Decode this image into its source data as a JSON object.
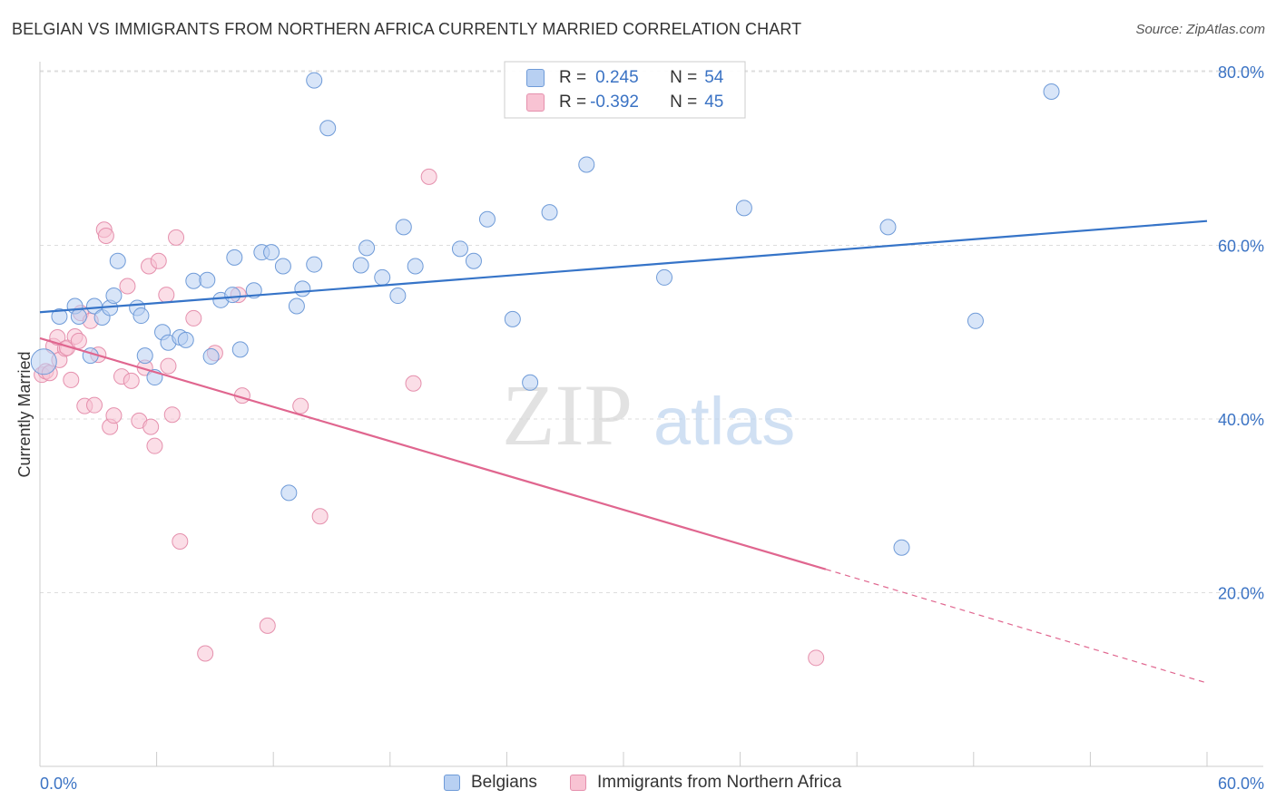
{
  "title": "BELGIAN VS IMMIGRANTS FROM NORTHERN AFRICA CURRENTLY MARRIED CORRELATION CHART",
  "source": "Source: ZipAtlas.com",
  "watermark": {
    "zip": "ZIP",
    "atlas": "atlas"
  },
  "colors": {
    "belgian_fill": "#b8d0f2",
    "belgian_stroke": "#6f9bd8",
    "belgian_line": "#3674c8",
    "immigrant_fill": "#f8c3d3",
    "immigrant_stroke": "#e590ad",
    "immigrant_line": "#e0668f",
    "axis_label": "#3b73c4",
    "grid": "#dddddd"
  },
  "correlation_box": {
    "rows": [
      {
        "r_label": "R = ",
        "r_value": "0.245",
        "n_label": "N = ",
        "n_value": "54"
      },
      {
        "r_label": "R = ",
        "r_value": "-0.392",
        "n_label": "N = ",
        "n_value": "45"
      }
    ]
  },
  "legend": {
    "items": [
      "Belgians",
      "Immigrants from Northern Africa"
    ]
  },
  "chart_data": {
    "type": "scatter",
    "title": "BELGIAN VS IMMIGRANTS FROM NORTHERN AFRICA CURRENTLY MARRIED CORRELATION CHART",
    "xlabel": "",
    "ylabel": "Currently Married",
    "xlim": [
      0,
      60
    ],
    "ylim": [
      0,
      83
    ],
    "x_tick_labels": [
      "0.0%",
      "60.0%"
    ],
    "y_ticks": [
      20,
      40,
      60,
      80
    ],
    "y_tick_labels": [
      "20.0%",
      "40.0%",
      "60.0%",
      "80.0%"
    ],
    "grid": "horizontal dashed",
    "legend_position": "bottom-center",
    "series": [
      {
        "name": "Belgians",
        "trend": {
          "x": [
            0,
            60
          ],
          "y": [
            52.3,
            62.8
          ]
        },
        "points": [
          [
            0.2,
            46.6
          ],
          [
            1.0,
            51.8
          ],
          [
            1.8,
            53.0
          ],
          [
            2.0,
            51.8
          ],
          [
            2.8,
            53.0
          ],
          [
            3.2,
            51.7
          ],
          [
            2.6,
            47.3
          ],
          [
            3.6,
            52.8
          ],
          [
            3.8,
            54.2
          ],
          [
            4.0,
            58.2
          ],
          [
            5.0,
            52.8
          ],
          [
            5.2,
            51.9
          ],
          [
            5.4,
            47.3
          ],
          [
            5.9,
            44.8
          ],
          [
            6.3,
            50.0
          ],
          [
            6.6,
            48.8
          ],
          [
            7.2,
            49.4
          ],
          [
            7.5,
            49.1
          ],
          [
            7.9,
            55.9
          ],
          [
            8.6,
            56.0
          ],
          [
            8.8,
            47.2
          ],
          [
            9.3,
            53.7
          ],
          [
            9.9,
            54.3
          ],
          [
            10.0,
            58.6
          ],
          [
            10.3,
            48.0
          ],
          [
            11.0,
            54.8
          ],
          [
            11.4,
            59.2
          ],
          [
            11.9,
            59.2
          ],
          [
            12.5,
            57.6
          ],
          [
            12.8,
            31.5
          ],
          [
            13.2,
            53.0
          ],
          [
            13.5,
            55.0
          ],
          [
            14.1,
            57.8
          ],
          [
            14.1,
            79.0
          ],
          [
            14.8,
            73.5
          ],
          [
            16.5,
            57.7
          ],
          [
            16.8,
            59.7
          ],
          [
            17.6,
            56.3
          ],
          [
            18.4,
            54.2
          ],
          [
            18.7,
            62.1
          ],
          [
            19.3,
            57.6
          ],
          [
            21.6,
            59.6
          ],
          [
            22.3,
            58.2
          ],
          [
            23.0,
            63.0
          ],
          [
            24.3,
            51.5
          ],
          [
            25.2,
            44.2
          ],
          [
            26.2,
            63.8
          ],
          [
            28.1,
            69.3
          ],
          [
            32.1,
            56.3
          ],
          [
            36.2,
            64.3
          ],
          [
            43.6,
            62.1
          ],
          [
            44.3,
            25.2
          ],
          [
            48.1,
            51.3
          ],
          [
            52.0,
            77.7
          ]
        ]
      },
      {
        "name": "Immigrants from Northern Africa",
        "trend": {
          "x": [
            0,
            40.4
          ],
          "y": [
            49.3,
            22.7
          ]
        },
        "trend_dashed": {
          "x": [
            40.4,
            60
          ],
          "y": [
            22.7,
            9.6
          ]
        },
        "points": [
          [
            0.1,
            45.1
          ],
          [
            0.3,
            45.5
          ],
          [
            0.5,
            45.3
          ],
          [
            0.7,
            48.4
          ],
          [
            0.9,
            49.4
          ],
          [
            1.0,
            46.8
          ],
          [
            1.3,
            48.1
          ],
          [
            1.4,
            48.2
          ],
          [
            1.6,
            44.5
          ],
          [
            1.8,
            49.5
          ],
          [
            2.0,
            49.0
          ],
          [
            2.1,
            52.2
          ],
          [
            2.3,
            41.5
          ],
          [
            2.6,
            51.3
          ],
          [
            2.8,
            41.6
          ],
          [
            3.0,
            47.4
          ],
          [
            3.3,
            61.8
          ],
          [
            3.4,
            61.1
          ],
          [
            3.6,
            39.1
          ],
          [
            3.8,
            40.4
          ],
          [
            4.2,
            44.9
          ],
          [
            4.5,
            55.3
          ],
          [
            4.7,
            44.4
          ],
          [
            5.1,
            39.8
          ],
          [
            5.4,
            45.9
          ],
          [
            5.6,
            57.6
          ],
          [
            5.7,
            39.1
          ],
          [
            5.9,
            36.9
          ],
          [
            6.1,
            58.2
          ],
          [
            6.5,
            54.3
          ],
          [
            6.6,
            46.1
          ],
          [
            6.8,
            40.5
          ],
          [
            7.0,
            60.9
          ],
          [
            7.2,
            25.9
          ],
          [
            7.9,
            51.6
          ],
          [
            8.5,
            13.0
          ],
          [
            9.0,
            47.6
          ],
          [
            10.2,
            54.3
          ],
          [
            10.4,
            42.7
          ],
          [
            11.7,
            16.2
          ],
          [
            13.4,
            41.5
          ],
          [
            14.4,
            28.8
          ],
          [
            19.2,
            44.1
          ],
          [
            20.0,
            67.9
          ],
          [
            39.9,
            12.5
          ]
        ]
      }
    ]
  }
}
